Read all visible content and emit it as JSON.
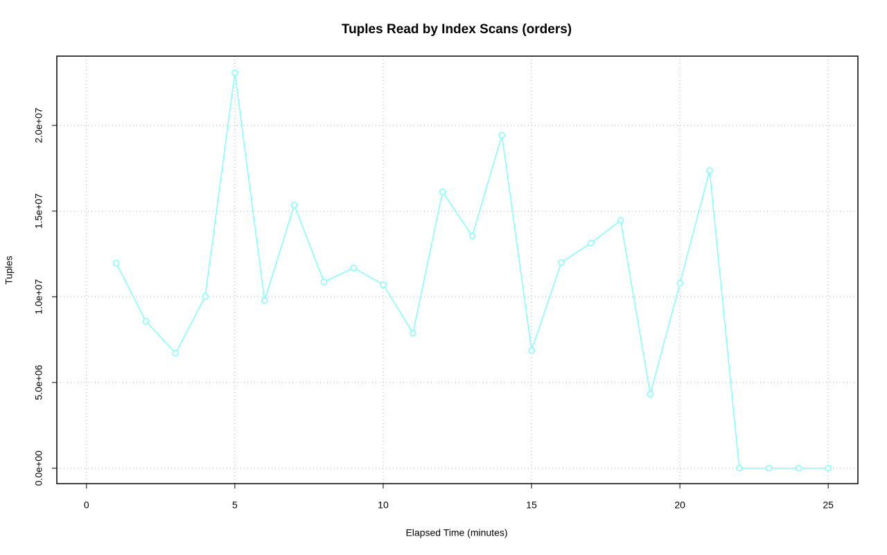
{
  "chart_data": {
    "type": "line",
    "title": "Tuples Read by Index Scans (orders)",
    "x_label": "Elapsed Time (minutes)",
    "y_label": "Tuples",
    "x": [
      1,
      2,
      3,
      4,
      5,
      6,
      7,
      8,
      9,
      10,
      11,
      12,
      13,
      14,
      15,
      16,
      17,
      18,
      19,
      20,
      21,
      22,
      23,
      24,
      25
    ],
    "series": [
      {
        "name": "Tuples",
        "color": "#80ffff",
        "values": [
          11960000,
          8570000,
          6710000,
          10020000,
          23070000,
          9780000,
          15350000,
          10870000,
          11680000,
          10710000,
          7880000,
          16120000,
          13540000,
          19430000,
          6870000,
          12000000,
          13130000,
          14460000,
          4320000,
          10790000,
          17370000,
          0,
          0,
          0,
          0
        ]
      }
    ],
    "xlim": [
      -1,
      26
    ],
    "xticks": [
      0,
      5,
      10,
      15,
      20,
      25
    ],
    "ylim": [
      -900000,
      24040000
    ],
    "yticks": [
      {
        "value": 0,
        "label": "0.0e+00"
      },
      {
        "value": 5000000,
        "label": "5.0e+06"
      },
      {
        "value": 10000000,
        "label": "1.0e+07"
      },
      {
        "value": 15000000,
        "label": "1.5e+07"
      },
      {
        "value": 20000000,
        "label": "2.0e+07"
      }
    ],
    "grid": true
  }
}
